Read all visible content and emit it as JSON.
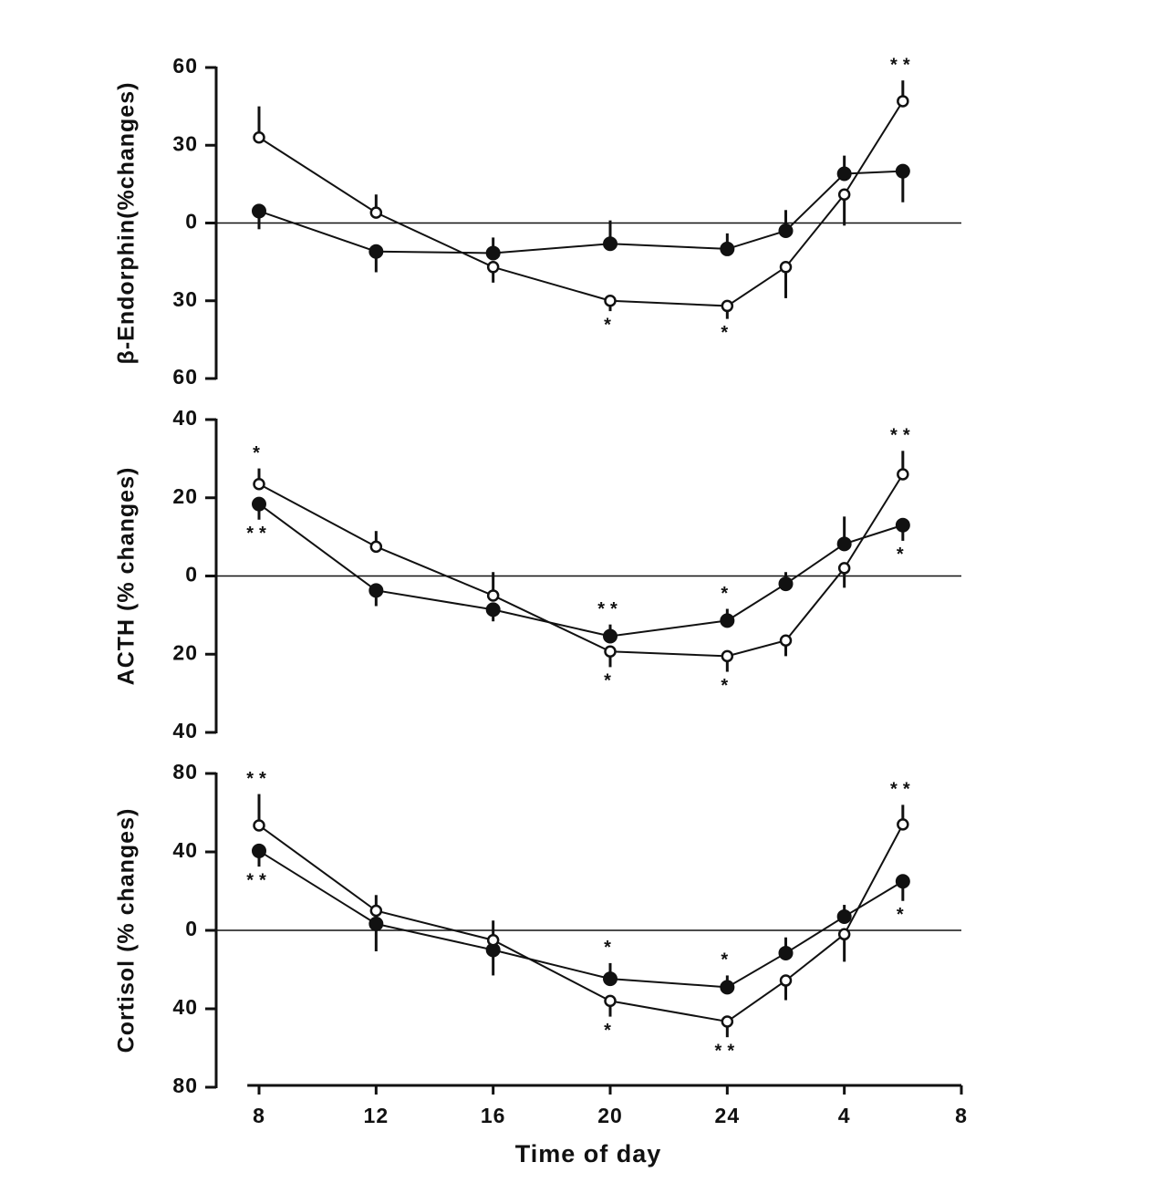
{
  "chart_data": [
    {
      "type": "line",
      "ylabel": "β-Endorphin(%changes)",
      "x": [
        8,
        12,
        16,
        20,
        24,
        26,
        28,
        30
      ],
      "xlim": [
        7.6,
        32
      ],
      "ylim": [
        -60,
        60
      ],
      "yticks": [
        {
          "value": -60,
          "label": "60"
        },
        {
          "value": -30,
          "label": "30"
        },
        0,
        30,
        60
      ],
      "zero_line": true,
      "series": [
        {
          "marker": "filled",
          "color": "#111",
          "values": [
            4.6,
            -11,
            -11.6,
            -8,
            -10,
            -3,
            19,
            20
          ],
          "errors": [
            7,
            8,
            6,
            9,
            6,
            8,
            7,
            12
          ]
        },
        {
          "marker": "open",
          "color": "#111",
          "values": [
            33,
            4,
            -17,
            -30,
            -32,
            -17,
            11,
            47
          ],
          "errors": [
            12,
            7,
            6,
            4,
            5,
            12,
            12,
            8
          ]
        }
      ],
      "annotations": [
        {
          "text": "*",
          "x": 20,
          "series": 1
        },
        {
          "text": "*",
          "x": 24,
          "series": 1
        },
        {
          "text": "**",
          "x": 30,
          "series": 1
        }
      ]
    },
    {
      "type": "line",
      "ylabel": "ACTH (% changes)",
      "x": [
        8,
        12,
        16,
        20,
        24,
        26,
        28,
        30
      ],
      "xlim": [
        7.6,
        32
      ],
      "ylim": [
        -40,
        40
      ],
      "yticks": [
        {
          "value": -40,
          "label": "40"
        },
        {
          "value": -20,
          "label": "20"
        },
        0,
        20,
        40
      ],
      "zero_line": true,
      "series": [
        {
          "marker": "filled",
          "color": "#111",
          "values": [
            18.4,
            -3.7,
            -8.6,
            -15.4,
            -11.4,
            -2,
            8.2,
            13
          ],
          "errors": [
            4,
            4,
            3,
            3,
            3,
            3,
            7,
            4
          ]
        },
        {
          "marker": "open",
          "color": "#111",
          "values": [
            23.5,
            7.5,
            -5,
            -19.3,
            -20.5,
            -16.5,
            2,
            26
          ],
          "errors": [
            4,
            4,
            6,
            4,
            4,
            4,
            5,
            6
          ]
        }
      ],
      "annotations": [
        {
          "text": "*",
          "x": 8,
          "series": 1
        },
        {
          "text": "**",
          "x": 8,
          "series": 0
        },
        {
          "text": "**",
          "x": 20,
          "series": 0
        },
        {
          "text": "*",
          "x": 20,
          "series": 1
        },
        {
          "text": "*",
          "x": 24,
          "series": 0
        },
        {
          "text": "*",
          "x": 24,
          "series": 1
        },
        {
          "text": "**",
          "x": 30,
          "series": 1
        },
        {
          "text": "*",
          "x": 30,
          "series": 0
        }
      ]
    },
    {
      "type": "line",
      "ylabel": "Cortisol (% changes)",
      "xlabel": "Time of day",
      "x": [
        8,
        12,
        16,
        20,
        24,
        26,
        28,
        30
      ],
      "xlim": [
        7.6,
        32
      ],
      "xticks": [
        8,
        12,
        16,
        20,
        24,
        {
          "value": 28,
          "label": "4"
        },
        {
          "value": 32,
          "label": "8"
        }
      ],
      "ylim": [
        -80,
        80
      ],
      "yticks": [
        {
          "value": -80,
          "label": "80"
        },
        {
          "value": -40,
          "label": "40"
        },
        0,
        40,
        80
      ],
      "zero_line": true,
      "series": [
        {
          "marker": "filled",
          "color": "#111",
          "values": [
            40.5,
            3.3,
            -10,
            -24.7,
            -29,
            -11.6,
            7,
            25
          ],
          "errors": [
            8,
            14,
            13,
            8,
            6,
            8,
            6,
            10
          ]
        },
        {
          "marker": "open",
          "color": "#111",
          "values": [
            53.5,
            10,
            -5,
            -36,
            -46.5,
            -25.6,
            -2,
            54
          ],
          "errors": [
            16,
            8,
            10,
            8,
            8,
            10,
            14,
            10
          ]
        }
      ],
      "annotations": [
        {
          "text": "**",
          "x": 8,
          "series": 1
        },
        {
          "text": "**",
          "x": 8,
          "series": 0
        },
        {
          "text": "*",
          "x": 20,
          "series": 0
        },
        {
          "text": "*",
          "x": 20,
          "series": 1
        },
        {
          "text": "*",
          "x": 24,
          "series": 0
        },
        {
          "text": "**",
          "x": 24,
          "series": 1
        },
        {
          "text": "**",
          "x": 30,
          "series": 1
        },
        {
          "text": "*",
          "x": 30,
          "series": 0
        }
      ]
    }
  ]
}
